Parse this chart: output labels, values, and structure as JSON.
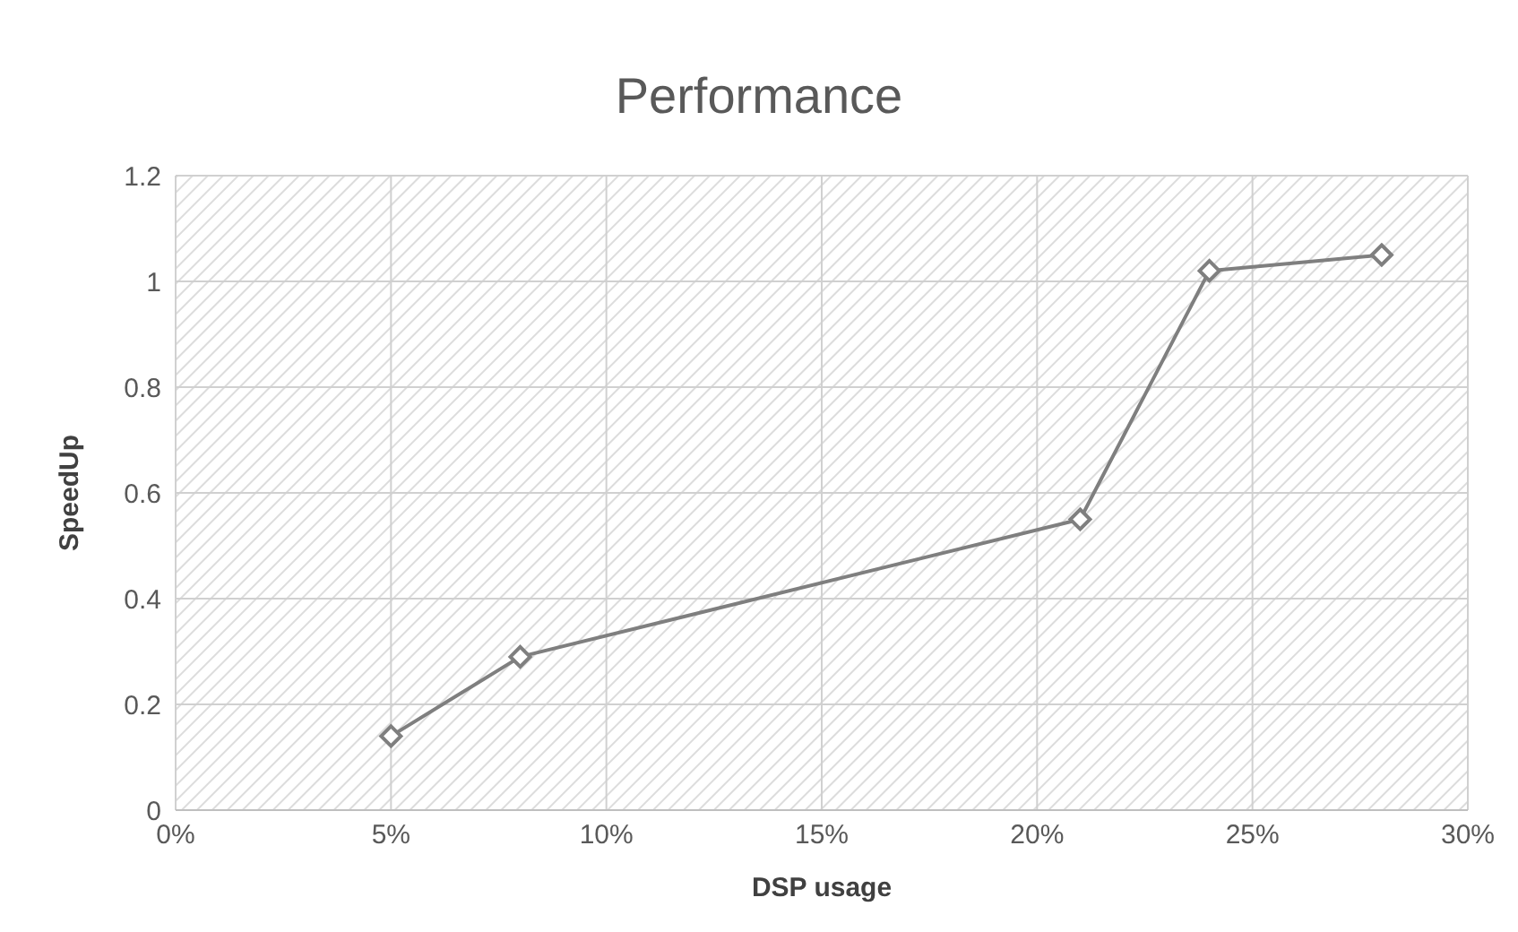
{
  "chart_data": {
    "type": "line",
    "title": "Performance",
    "xlabel": "DSP usage",
    "ylabel": "SpeedUp",
    "x": [
      5,
      8,
      21,
      24,
      28
    ],
    "series": [
      {
        "color": "#7f7f7f",
        "values": [
          0.14,
          0.29,
          0.55,
          1.02,
          1.05
        ]
      }
    ],
    "xlim": [
      0,
      30
    ],
    "xticks": [
      {
        "value": 0,
        "label": "0%"
      },
      {
        "value": 5,
        "label": "5%"
      },
      {
        "value": 10,
        "label": "10%"
      },
      {
        "value": 15,
        "label": "15%"
      },
      {
        "value": 20,
        "label": "20%"
      },
      {
        "value": 25,
        "label": "25%"
      },
      {
        "value": 30,
        "label": "30%"
      }
    ],
    "ylim": [
      0,
      1.2
    ],
    "yticks": [
      0,
      0.2,
      0.4,
      0.6,
      0.8,
      1,
      1.2
    ],
    "grid": true,
    "marker": "diamond",
    "line_style": "solid"
  }
}
